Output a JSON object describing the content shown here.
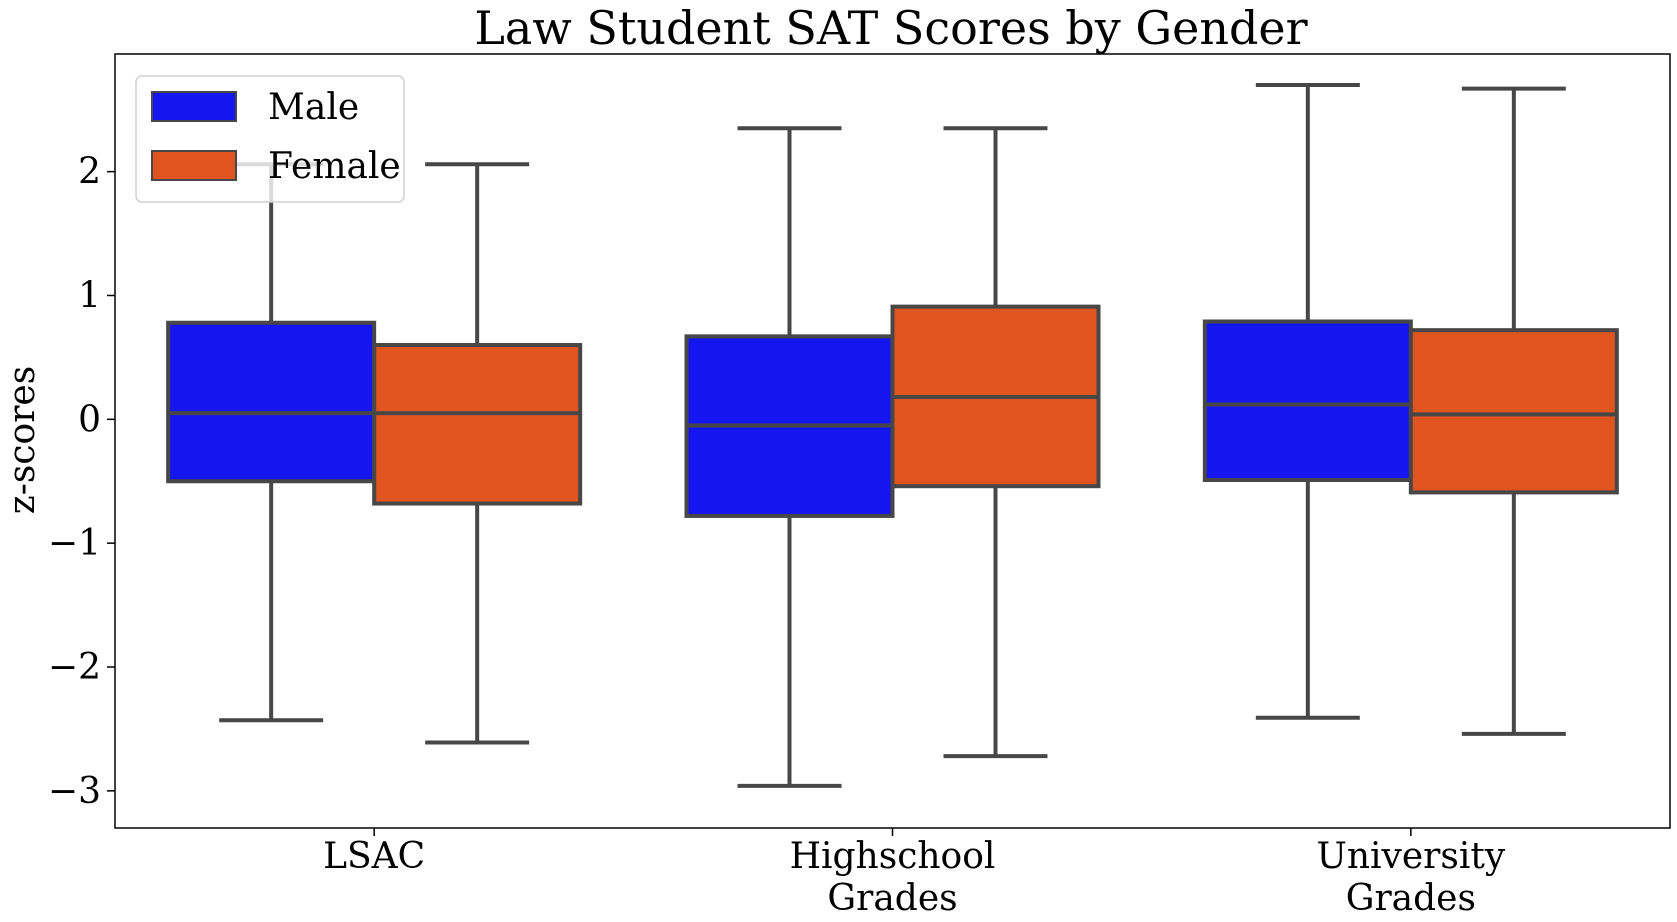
{
  "chart_data": {
    "type": "box",
    "title": "Law Student SAT Scores by Gender",
    "xlabel": "",
    "ylabel": "z-scores",
    "ylim": [
      -3.3,
      2.95
    ],
    "yticks": [
      2,
      1,
      0,
      -1,
      -2,
      -3
    ],
    "ytick_labels": [
      "2",
      "1",
      "0",
      "−1",
      "−2",
      "−3"
    ],
    "categories": [
      {
        "lines": [
          "LSAC"
        ]
      },
      {
        "lines": [
          "Highschool",
          "Grades"
        ]
      },
      {
        "lines": [
          "University",
          "Grades"
        ]
      }
    ],
    "legend": {
      "position": "top-left"
    },
    "grid": false,
    "series": [
      {
        "name": "Male",
        "color": "#1515f0",
        "boxes": [
          {
            "whisker_low": -2.43,
            "q1": -0.5,
            "median": 0.05,
            "q3": 0.78,
            "whisker_high": 2.06
          },
          {
            "whisker_low": -2.96,
            "q1": -0.78,
            "median": -0.05,
            "q3": 0.67,
            "whisker_high": 2.35
          },
          {
            "whisker_low": -2.41,
            "q1": -0.49,
            "median": 0.12,
            "q3": 0.79,
            "whisker_high": 2.7
          }
        ]
      },
      {
        "name": "Female",
        "color": "#e05420",
        "boxes": [
          {
            "whisker_low": -2.61,
            "q1": -0.68,
            "median": 0.05,
            "q3": 0.6,
            "whisker_high": 2.06
          },
          {
            "whisker_low": -2.72,
            "q1": -0.54,
            "median": 0.18,
            "q3": 0.91,
            "whisker_high": 2.35
          },
          {
            "whisker_low": -2.54,
            "q1": -0.59,
            "median": 0.04,
            "q3": 0.72,
            "whisker_high": 2.67
          }
        ]
      }
    ],
    "line_color": "#474747"
  }
}
